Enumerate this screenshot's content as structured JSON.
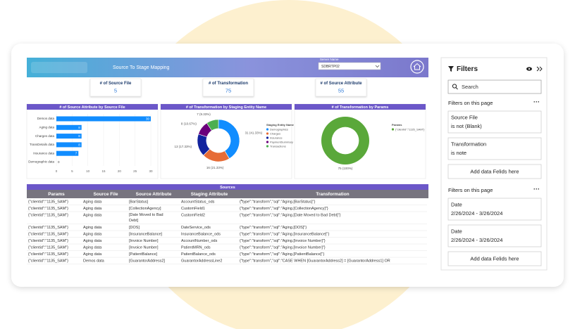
{
  "header": {
    "title": "Source To Stage Mapping",
    "server_label": "Server Name",
    "server_value": "SDBRTP02"
  },
  "kpis": [
    {
      "label": "# of Source File",
      "value": 5
    },
    {
      "label": "# of Transformation",
      "value": 75
    },
    {
      "label": "# of Source Attribute",
      "value": 55
    }
  ],
  "charts": [
    {
      "type": "bar",
      "title": "# of Source Attribute by Source File",
      "categories": [
        "Demos data",
        "Aging data",
        "Charges data",
        "TransDetails data",
        "Insurance data",
        "Demographic data"
      ],
      "values": [
        30,
        8,
        8,
        8,
        7,
        0
      ],
      "color": "#118dff",
      "xlim": [
        0,
        30
      ],
      "xticks": [
        0,
        5,
        10,
        15,
        20,
        25,
        30
      ]
    },
    {
      "type": "pie",
      "title": "# of Transformation by Staging Entity Name",
      "legend_title": "Staging Entity Name",
      "categories": [
        "Demographics",
        "Charges",
        "Insurance",
        "PaymentSummary",
        "Transactions"
      ],
      "values": [
        31,
        16,
        13,
        8,
        7
      ],
      "value_labels": [
        "31 (41.33%)",
        "16 (21.33%)",
        "13 (17.33%)",
        "8 (10.67%)",
        "7 (9.33%)"
      ],
      "colors": [
        "#118dff",
        "#e66c37",
        "#12239e",
        "#6b007b",
        "#4caf50"
      ]
    },
    {
      "type": "pie",
      "title": "# of Transformation by Params",
      "legend_title": "Params",
      "categories": [
        "{\"clientid\":\"1135_SAM\"}"
      ],
      "values": [
        75
      ],
      "value_labels": [
        "75 (100%)"
      ],
      "colors": [
        "#5aa83a"
      ]
    }
  ],
  "table": {
    "title": "Sources",
    "columns": [
      "Params",
      "Source File",
      "Source Attribute",
      "Staging Attribute",
      "Transformation"
    ],
    "rows": [
      [
        "{\"clientid\":\"1135_SAM\"}",
        "Aging data",
        "[BarStatus]",
        "AccountStatus_ods",
        "{\"type\":\"transform\",\"sql\":\"Aging.[BarStatus]\"}"
      ],
      [
        "{\"clientid\":\"1135_SAM\"}",
        "Aging data",
        "[CollectionAgency]",
        "CustomField1",
        "{\"type\":\"transform\",\"sql\":\"Aging.[CollectionAgency]\"}"
      ],
      [
        "{\"clientid\":\"1135_SAM\"}",
        "Aging data",
        "[Date Moved to Bad Debt]",
        "CustomField2",
        "{\"type\":\"transform\",\"sql\":\"Aging.[Date Moved to Bad Debt]\"}"
      ],
      [
        "{\"clientid\":\"1135_SAM\"}",
        "Aging data",
        "[DOS]",
        "DateService_ods",
        "{\"type\":\"transform\",\"sql\":\"Aging.[DOS]\"}"
      ],
      [
        "{\"clientid\":\"1135_SAM\"}",
        "Aging data",
        "[InsuranceBalance]",
        "InsuranceBalance_ods",
        "{\"type\":\"transform\",\"sql\":\"Aging.[InsuranceBalance]\"}"
      ],
      [
        "{\"clientid\":\"1135_SAM\"}",
        "Aging data",
        "[Invoice Number]",
        "AccountNumber_ods",
        "{\"type\":\"transform\",\"sql\":\"Aging.[Invoice Number]\"}"
      ],
      [
        "{\"clientid\":\"1135_SAM\"}",
        "Aging data",
        "[Invoice Number]",
        "PatientMRN_ods",
        "{\"type\":\"transform\",\"sql\":\"Aging.[Invoice Number]\"}"
      ],
      [
        "{\"clientid\":\"1135_SAM\"}",
        "Aging data",
        "[PatientBalance]",
        "PatientBalance_ods",
        "{\"type\":\"transform\",\"sql\":\"Aging.[PatientBalance]\"}"
      ],
      [
        "{\"clientid\":\"1135_SAM\"}",
        "Demos data",
        "[GuarantorAddress2]",
        "GuarantorAddressLine2",
        "{\"type\":\"transform\",\"sql\":\"CASE WHEN [GuarantorAddress2] = [GuarantorAddress1] OR"
      ]
    ]
  },
  "filters": {
    "title": "Filters",
    "search": "Search",
    "sections": [
      {
        "heading": "Filters on this page",
        "cards": [
          {
            "name": "Source File",
            "state": "is not (Blank)"
          },
          {
            "name": "Transformation",
            "state": "is note"
          }
        ],
        "add": "Add data Felids here"
      },
      {
        "heading": "Filters on this page",
        "cards": [
          {
            "name": "Date",
            "state": "2/26/2024 - 3/26/2024"
          },
          {
            "name": "Date",
            "state": "2/26/2024 - 3/26/2024"
          }
        ],
        "add": "Add data Felids here"
      }
    ]
  }
}
